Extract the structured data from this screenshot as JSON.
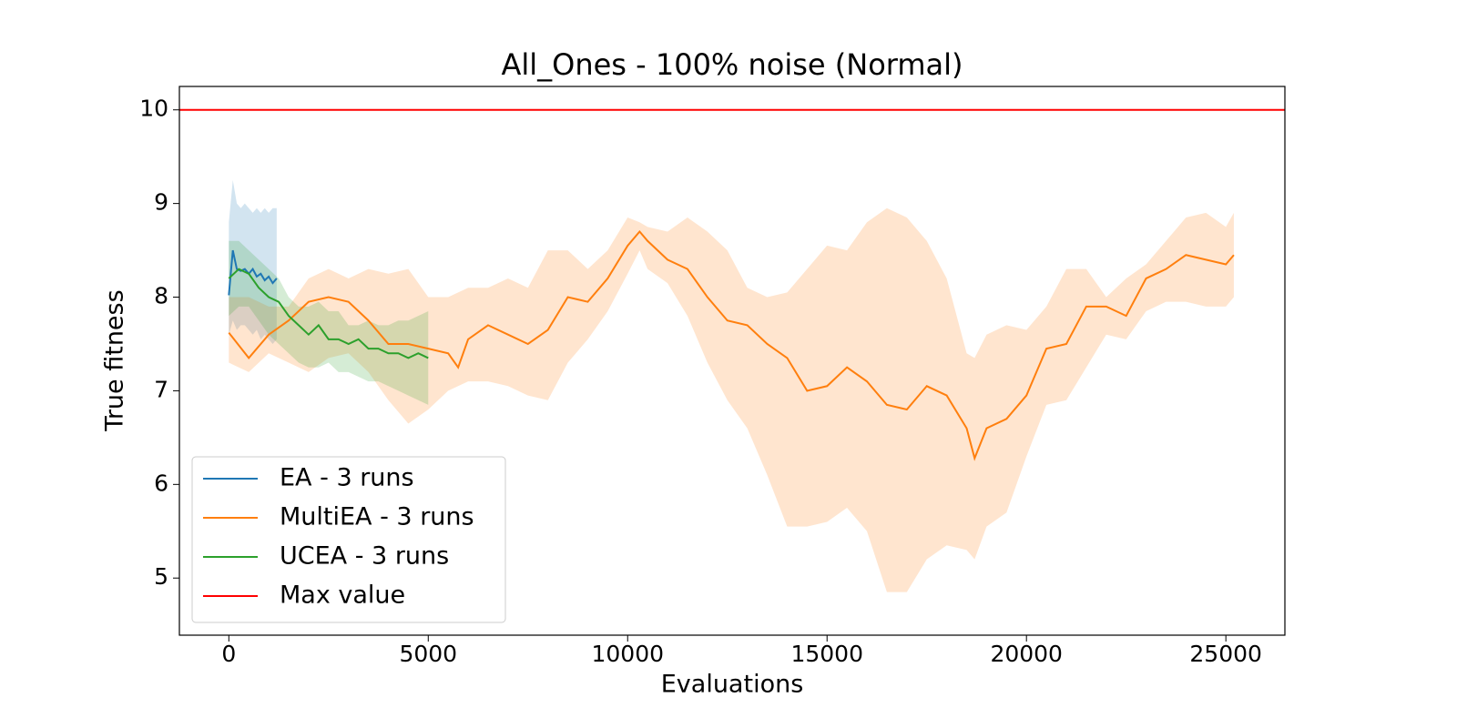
{
  "chart_data": {
    "type": "line",
    "title": "All_Ones - 100% noise (Normal)",
    "x_label": "Evaluations",
    "y_label": "True fitness",
    "xlim": [
      -1240,
      26480
    ],
    "ylim": [
      4.39,
      10.25
    ],
    "xticks": [
      0,
      5000,
      10000,
      15000,
      20000,
      25000
    ],
    "yticks": [
      5,
      6,
      7,
      8,
      9,
      10
    ],
    "grid": false,
    "legend_loc": "lower left",
    "band_opacity": 0.2,
    "series": [
      {
        "name": "EA - 3 runs",
        "color": "#1f77b4",
        "x": [
          0,
          100,
          200,
          300,
          400,
          500,
          600,
          700,
          800,
          900,
          1000,
          1100,
          1200
        ],
        "values": [
          8.02,
          8.5,
          8.3,
          8.28,
          8.3,
          8.25,
          8.3,
          8.22,
          8.25,
          8.18,
          8.22,
          8.15,
          8.2
        ],
        "upper": [
          8.8,
          9.25,
          9.0,
          8.95,
          9.0,
          8.95,
          8.9,
          8.95,
          8.9,
          8.95,
          8.9,
          8.95,
          8.95
        ],
        "lower": [
          7.6,
          7.75,
          7.65,
          7.7,
          7.7,
          7.65,
          7.6,
          7.65,
          7.55,
          7.6,
          7.55,
          7.5,
          7.55
        ]
      },
      {
        "name": "MultiEA - 3 runs",
        "color": "#ff7f0e",
        "x": [
          0,
          500,
          1000,
          1500,
          2000,
          2500,
          3000,
          3500,
          4000,
          4500,
          5000,
          5500,
          5750,
          6000,
          6500,
          7000,
          7500,
          8000,
          8500,
          9000,
          9500,
          10000,
          10300,
          10500,
          11000,
          11500,
          12000,
          12500,
          13000,
          13500,
          14000,
          14500,
          15000,
          15500,
          16000,
          16500,
          17000,
          17500,
          18000,
          18500,
          18700,
          19000,
          19500,
          20000,
          20500,
          21000,
          21500,
          22000,
          22500,
          23000,
          23500,
          24000,
          24500,
          25000,
          25200
        ],
        "values": [
          7.62,
          7.35,
          7.6,
          7.75,
          7.95,
          8.0,
          7.95,
          7.75,
          7.5,
          7.5,
          7.45,
          7.4,
          7.25,
          7.55,
          7.7,
          7.6,
          7.5,
          7.65,
          8.0,
          7.95,
          8.2,
          8.55,
          8.7,
          8.6,
          8.4,
          8.3,
          8.0,
          7.75,
          7.7,
          7.5,
          7.35,
          7.0,
          7.05,
          7.25,
          7.1,
          6.85,
          6.8,
          7.05,
          6.95,
          6.6,
          6.28,
          6.6,
          6.7,
          6.95,
          7.45,
          7.5,
          7.9,
          7.9,
          7.8,
          8.2,
          8.3,
          8.45,
          8.4,
          8.35,
          8.45
        ],
        "upper": [
          8.0,
          8.0,
          7.9,
          7.9,
          8.2,
          8.3,
          8.2,
          8.3,
          8.25,
          8.3,
          8.0,
          8.0,
          8.05,
          8.1,
          8.1,
          8.2,
          8.1,
          8.5,
          8.5,
          8.3,
          8.5,
          8.85,
          8.8,
          8.75,
          8.7,
          8.85,
          8.7,
          8.5,
          8.1,
          8.0,
          8.05,
          8.3,
          8.55,
          8.5,
          8.8,
          8.95,
          8.85,
          8.6,
          8.2,
          7.4,
          7.35,
          7.6,
          7.7,
          7.65,
          7.9,
          8.3,
          8.3,
          8.0,
          8.2,
          8.35,
          8.6,
          8.85,
          8.9,
          8.75,
          8.9
        ],
        "lower": [
          7.3,
          7.2,
          7.4,
          7.3,
          7.2,
          7.35,
          7.4,
          7.2,
          6.9,
          6.65,
          6.8,
          7.0,
          7.05,
          7.1,
          7.1,
          7.05,
          6.95,
          6.9,
          7.3,
          7.55,
          7.85,
          8.25,
          8.5,
          8.3,
          8.15,
          7.8,
          7.3,
          6.9,
          6.6,
          6.1,
          5.55,
          5.55,
          5.6,
          5.75,
          5.5,
          4.85,
          4.85,
          5.2,
          5.35,
          5.3,
          5.2,
          5.55,
          5.7,
          6.3,
          6.85,
          6.9,
          7.25,
          7.6,
          7.55,
          7.85,
          7.95,
          7.95,
          7.9,
          7.9,
          8.0
        ]
      },
      {
        "name": "UCEA - 3 runs",
        "color": "#2ca02c",
        "x": [
          0,
          250,
          500,
          750,
          1000,
          1250,
          1500,
          1750,
          2000,
          2250,
          2500,
          2750,
          3000,
          3250,
          3500,
          3750,
          4000,
          4250,
          4500,
          4750,
          5000
        ],
        "values": [
          8.2,
          8.3,
          8.25,
          8.1,
          8.0,
          7.95,
          7.8,
          7.7,
          7.6,
          7.7,
          7.55,
          7.55,
          7.5,
          7.55,
          7.45,
          7.45,
          7.4,
          7.4,
          7.35,
          7.4,
          7.35
        ],
        "upper": [
          8.6,
          8.6,
          8.5,
          8.4,
          8.3,
          8.2,
          8.0,
          7.9,
          7.9,
          7.95,
          7.85,
          7.85,
          7.7,
          7.7,
          7.75,
          7.7,
          7.7,
          7.75,
          7.75,
          7.8,
          7.85
        ],
        "lower": [
          7.8,
          7.9,
          7.9,
          7.75,
          7.6,
          7.5,
          7.4,
          7.3,
          7.25,
          7.25,
          7.3,
          7.2,
          7.2,
          7.15,
          7.1,
          7.1,
          7.05,
          7.0,
          6.95,
          6.9,
          6.85
        ]
      }
    ],
    "hlines": [
      {
        "name": "Max value",
        "value": 10,
        "color": "#ff0000"
      }
    ]
  }
}
